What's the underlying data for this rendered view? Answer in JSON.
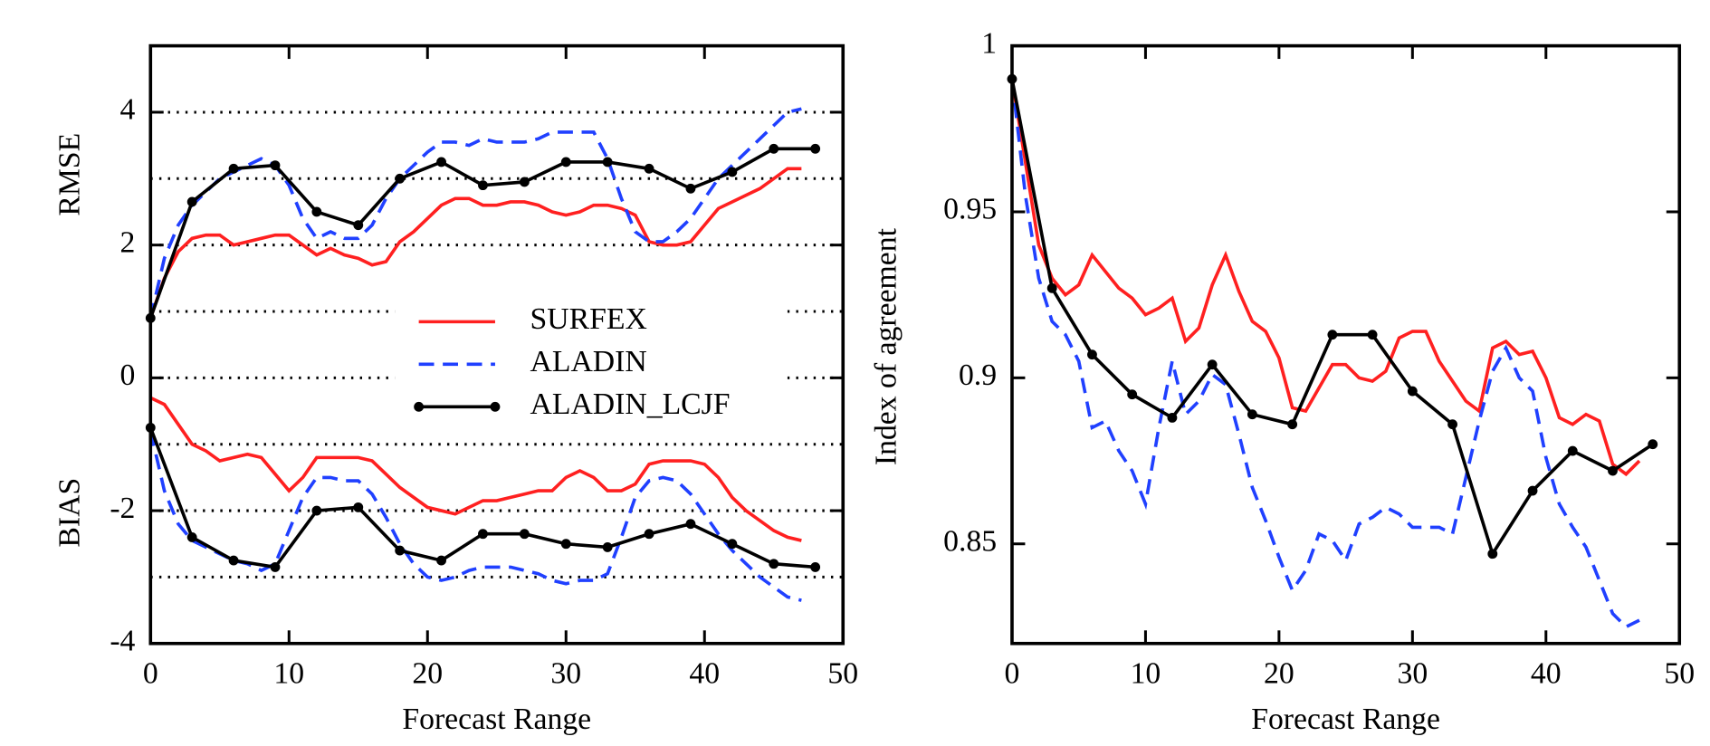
{
  "chart_data": [
    {
      "type": "line",
      "xlabel": "Forecast Range",
      "ylabel_top": "RMSE",
      "ylabel_bottom": "BIAS",
      "xlim": [
        0,
        50
      ],
      "xticks": [
        0,
        10,
        20,
        30,
        40,
        50
      ],
      "ylim": [
        -4,
        5
      ],
      "yticks": [
        -4,
        -2,
        0,
        2,
        4
      ],
      "grid_lines": [
        -3,
        -2,
        -1,
        0,
        1,
        2,
        3,
        4
      ],
      "legend": "center",
      "series": [
        {
          "name": "SURFEX",
          "color": "#ff2020",
          "dashed": false,
          "marker": false,
          "x": [
            0,
            1,
            2,
            3,
            4,
            5,
            6,
            7,
            8,
            9,
            10,
            11,
            12,
            13,
            14,
            15,
            16,
            17,
            18,
            19,
            20,
            21,
            22,
            23,
            24,
            25,
            26,
            27,
            28,
            29,
            30,
            31,
            32,
            33,
            34,
            35,
            36,
            37,
            38,
            39,
            40,
            41,
            42,
            43,
            44,
            45,
            46,
            47
          ],
          "values": [
            0.9,
            1.5,
            1.9,
            2.1,
            2.15,
            2.15,
            2.0,
            2.05,
            2.1,
            2.15,
            2.15,
            2.0,
            1.85,
            1.95,
            1.85,
            1.8,
            1.7,
            1.75,
            2.05,
            2.2,
            2.4,
            2.6,
            2.7,
            2.7,
            2.6,
            2.6,
            2.65,
            2.65,
            2.6,
            2.5,
            2.45,
            2.5,
            2.6,
            2.6,
            2.55,
            2.45,
            2.05,
            2.0,
            2.0,
            2.05,
            2.3,
            2.55,
            2.65,
            2.75,
            2.85,
            3.0,
            3.15,
            3.15
          ],
          "bias_values": [
            -0.3,
            -0.4,
            -0.7,
            -1.0,
            -1.1,
            -1.25,
            -1.2,
            -1.15,
            -1.2,
            -1.45,
            -1.7,
            -1.5,
            -1.2,
            -1.2,
            -1.2,
            -1.2,
            -1.25,
            -1.45,
            -1.65,
            -1.8,
            -1.95,
            -2.0,
            -2.05,
            -1.95,
            -1.85,
            -1.85,
            -1.8,
            -1.75,
            -1.7,
            -1.7,
            -1.5,
            -1.4,
            -1.5,
            -1.7,
            -1.7,
            -1.6,
            -1.3,
            -1.25,
            -1.25,
            -1.25,
            -1.3,
            -1.5,
            -1.8,
            -2.0,
            -2.15,
            -2.3,
            -2.4,
            -2.45
          ]
        },
        {
          "name": "ALADIN",
          "color": "#2040ff",
          "dashed": true,
          "marker": false,
          "x": [
            0,
            1,
            2,
            3,
            4,
            5,
            6,
            7,
            8,
            9,
            10,
            11,
            12,
            13,
            14,
            15,
            16,
            17,
            18,
            19,
            20,
            21,
            22,
            23,
            24,
            25,
            26,
            27,
            28,
            29,
            30,
            31,
            32,
            33,
            34,
            35,
            36,
            37,
            38,
            39,
            40,
            41,
            42,
            43,
            44,
            45,
            46,
            47
          ],
          "values": [
            0.9,
            1.8,
            2.3,
            2.6,
            2.8,
            3.0,
            3.1,
            3.2,
            3.3,
            3.2,
            2.9,
            2.4,
            2.1,
            2.2,
            2.1,
            2.1,
            2.3,
            2.7,
            3.0,
            3.2,
            3.4,
            3.55,
            3.55,
            3.5,
            3.6,
            3.55,
            3.55,
            3.55,
            3.6,
            3.7,
            3.7,
            3.7,
            3.7,
            3.3,
            2.7,
            2.2,
            2.05,
            2.05,
            2.2,
            2.4,
            2.7,
            3.0,
            3.2,
            3.4,
            3.6,
            3.8,
            4.0,
            4.05
          ],
          "bias_values": [
            -0.8,
            -1.7,
            -2.2,
            -2.45,
            -2.55,
            -2.65,
            -2.75,
            -2.8,
            -2.9,
            -2.8,
            -2.3,
            -1.8,
            -1.5,
            -1.5,
            -1.55,
            -1.55,
            -1.75,
            -2.1,
            -2.5,
            -2.8,
            -3.0,
            -3.05,
            -3.0,
            -2.9,
            -2.85,
            -2.85,
            -2.85,
            -2.9,
            -2.95,
            -3.05,
            -3.1,
            -3.05,
            -3.05,
            -2.95,
            -2.4,
            -1.8,
            -1.55,
            -1.5,
            -1.55,
            -1.75,
            -2.05,
            -2.35,
            -2.6,
            -2.8,
            -3.0,
            -3.15,
            -3.3,
            -3.35
          ]
        },
        {
          "name": "ALADIN_LCJF",
          "color": "#000000",
          "dashed": false,
          "marker": true,
          "x": [
            0,
            3,
            6,
            9,
            12,
            15,
            18,
            21,
            24,
            27,
            30,
            33,
            36,
            39,
            42,
            45,
            48
          ],
          "values": [
            0.9,
            2.65,
            3.15,
            3.2,
            2.5,
            2.3,
            3.0,
            3.25,
            2.9,
            2.95,
            3.25,
            3.25,
            3.15,
            2.85,
            3.1,
            3.45,
            3.45
          ],
          "bias_values": [
            -0.75,
            -2.4,
            -2.75,
            -2.85,
            -2.0,
            -1.95,
            -2.6,
            -2.75,
            -2.35,
            -2.35,
            -2.5,
            -2.55,
            -2.35,
            -2.2,
            -2.5,
            -2.8,
            -2.85
          ]
        }
      ]
    },
    {
      "type": "line",
      "xlabel": "Forecast Range",
      "ylabel": "Index of agreement",
      "xlim": [
        0,
        50
      ],
      "xticks": [
        0,
        10,
        20,
        30,
        40,
        50
      ],
      "ylim": [
        0.82,
        1
      ],
      "yticks": [
        0.85,
        0.9,
        0.95,
        1
      ],
      "series": [
        {
          "color": "#ff2020",
          "dashed": false,
          "marker": false,
          "x": [
            0,
            1,
            2,
            3,
            4,
            5,
            6,
            7,
            8,
            9,
            10,
            11,
            12,
            13,
            14,
            15,
            16,
            17,
            18,
            19,
            20,
            21,
            22,
            23,
            24,
            25,
            26,
            27,
            28,
            29,
            30,
            31,
            32,
            33,
            34,
            35,
            36,
            37,
            38,
            39,
            40,
            41,
            42,
            43,
            44,
            45,
            46,
            47
          ],
          "values": [
            0.99,
            0.965,
            0.94,
            0.93,
            0.925,
            0.928,
            0.937,
            0.932,
            0.927,
            0.924,
            0.919,
            0.921,
            0.924,
            0.911,
            0.915,
            0.928,
            0.937,
            0.926,
            0.917,
            0.914,
            0.906,
            0.891,
            0.89,
            0.897,
            0.904,
            0.904,
            0.9,
            0.899,
            0.902,
            0.912,
            0.914,
            0.914,
            0.905,
            0.899,
            0.893,
            0.89,
            0.909,
            0.911,
            0.907,
            0.908,
            0.9,
            0.888,
            0.886,
            0.889,
            0.887,
            0.874,
            0.871,
            0.875
          ]
        },
        {
          "color": "#2040ff",
          "dashed": true,
          "marker": false,
          "x": [
            0,
            1,
            2,
            3,
            4,
            5,
            6,
            7,
            8,
            9,
            10,
            11,
            12,
            13,
            14,
            15,
            16,
            17,
            18,
            19,
            20,
            21,
            22,
            23,
            24,
            25,
            26,
            27,
            28,
            29,
            30,
            31,
            32,
            33,
            34,
            35,
            36,
            37,
            38,
            39,
            40,
            41,
            42,
            43,
            44,
            45,
            46,
            47
          ],
          "values": [
            0.99,
            0.955,
            0.93,
            0.917,
            0.913,
            0.905,
            0.885,
            0.887,
            0.878,
            0.872,
            0.862,
            0.885,
            0.905,
            0.889,
            0.893,
            0.901,
            0.898,
            0.883,
            0.867,
            0.857,
            0.846,
            0.836,
            0.842,
            0.853,
            0.851,
            0.845,
            0.856,
            0.858,
            0.861,
            0.859,
            0.855,
            0.855,
            0.855,
            0.853,
            0.87,
            0.887,
            0.902,
            0.909,
            0.9,
            0.896,
            0.876,
            0.862,
            0.855,
            0.849,
            0.839,
            0.829,
            0.825,
            0.827
          ]
        },
        {
          "color": "#000000",
          "dashed": false,
          "marker": true,
          "x": [
            0,
            3,
            6,
            9,
            12,
            15,
            18,
            21,
            24,
            27,
            30,
            33,
            36,
            39,
            42,
            45,
            48
          ],
          "values": [
            0.99,
            0.927,
            0.907,
            0.895,
            0.888,
            0.904,
            0.889,
            0.886,
            0.913,
            0.913,
            0.896,
            0.886,
            0.847,
            0.866,
            0.878,
            0.872,
            0.88
          ]
        }
      ]
    }
  ]
}
